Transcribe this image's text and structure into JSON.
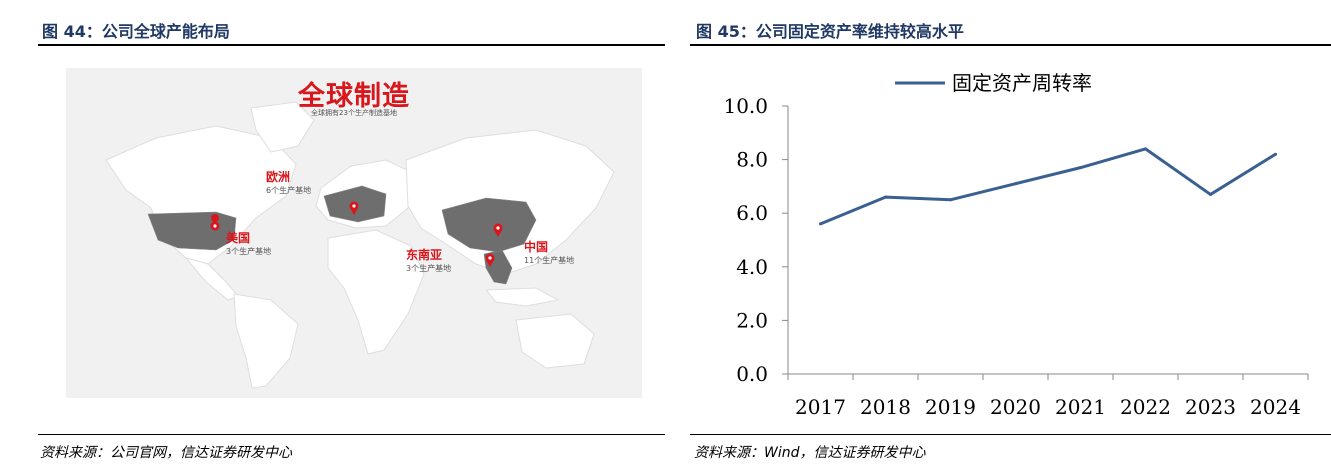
{
  "left_figure": {
    "title": "图 44：公司全球产能布局",
    "source": "资料来源：公司官网，信达证券研发中心",
    "map": {
      "heading": "全球制造",
      "subheading": "全球拥有23个生产制造基地",
      "regions": [
        {
          "name": "欧洲",
          "count": "6个生产基地"
        },
        {
          "name": "美国",
          "count": "3个生产基地"
        },
        {
          "name": "东南亚",
          "count": "3个生产基地"
        },
        {
          "name": "中国",
          "count": "11个生产基地"
        }
      ],
      "pin_color": "#d9161b",
      "highlight_color": "#6e6e6e"
    }
  },
  "right_figure": {
    "title": "图 45：公司固定资产率维持较高水平",
    "source": "资料来源：Wind，信达证券研发中心"
  },
  "chart_data": {
    "type": "line",
    "title": "",
    "xlabel": "",
    "ylabel": "",
    "x": [
      "2017",
      "2018",
      "2019",
      "2020",
      "2021",
      "2022",
      "2023",
      "2024"
    ],
    "series": [
      {
        "name": "固定资产周转率",
        "values": [
          5.6,
          6.6,
          6.5,
          7.1,
          7.7,
          8.4,
          6.7,
          8.2
        ],
        "color": "#3a5f91"
      }
    ],
    "ylim": [
      0,
      10
    ],
    "yticks": [
      "0.0",
      "2.0",
      "4.0",
      "6.0",
      "8.0",
      "10.0"
    ],
    "grid": false,
    "legend": "top-center"
  }
}
